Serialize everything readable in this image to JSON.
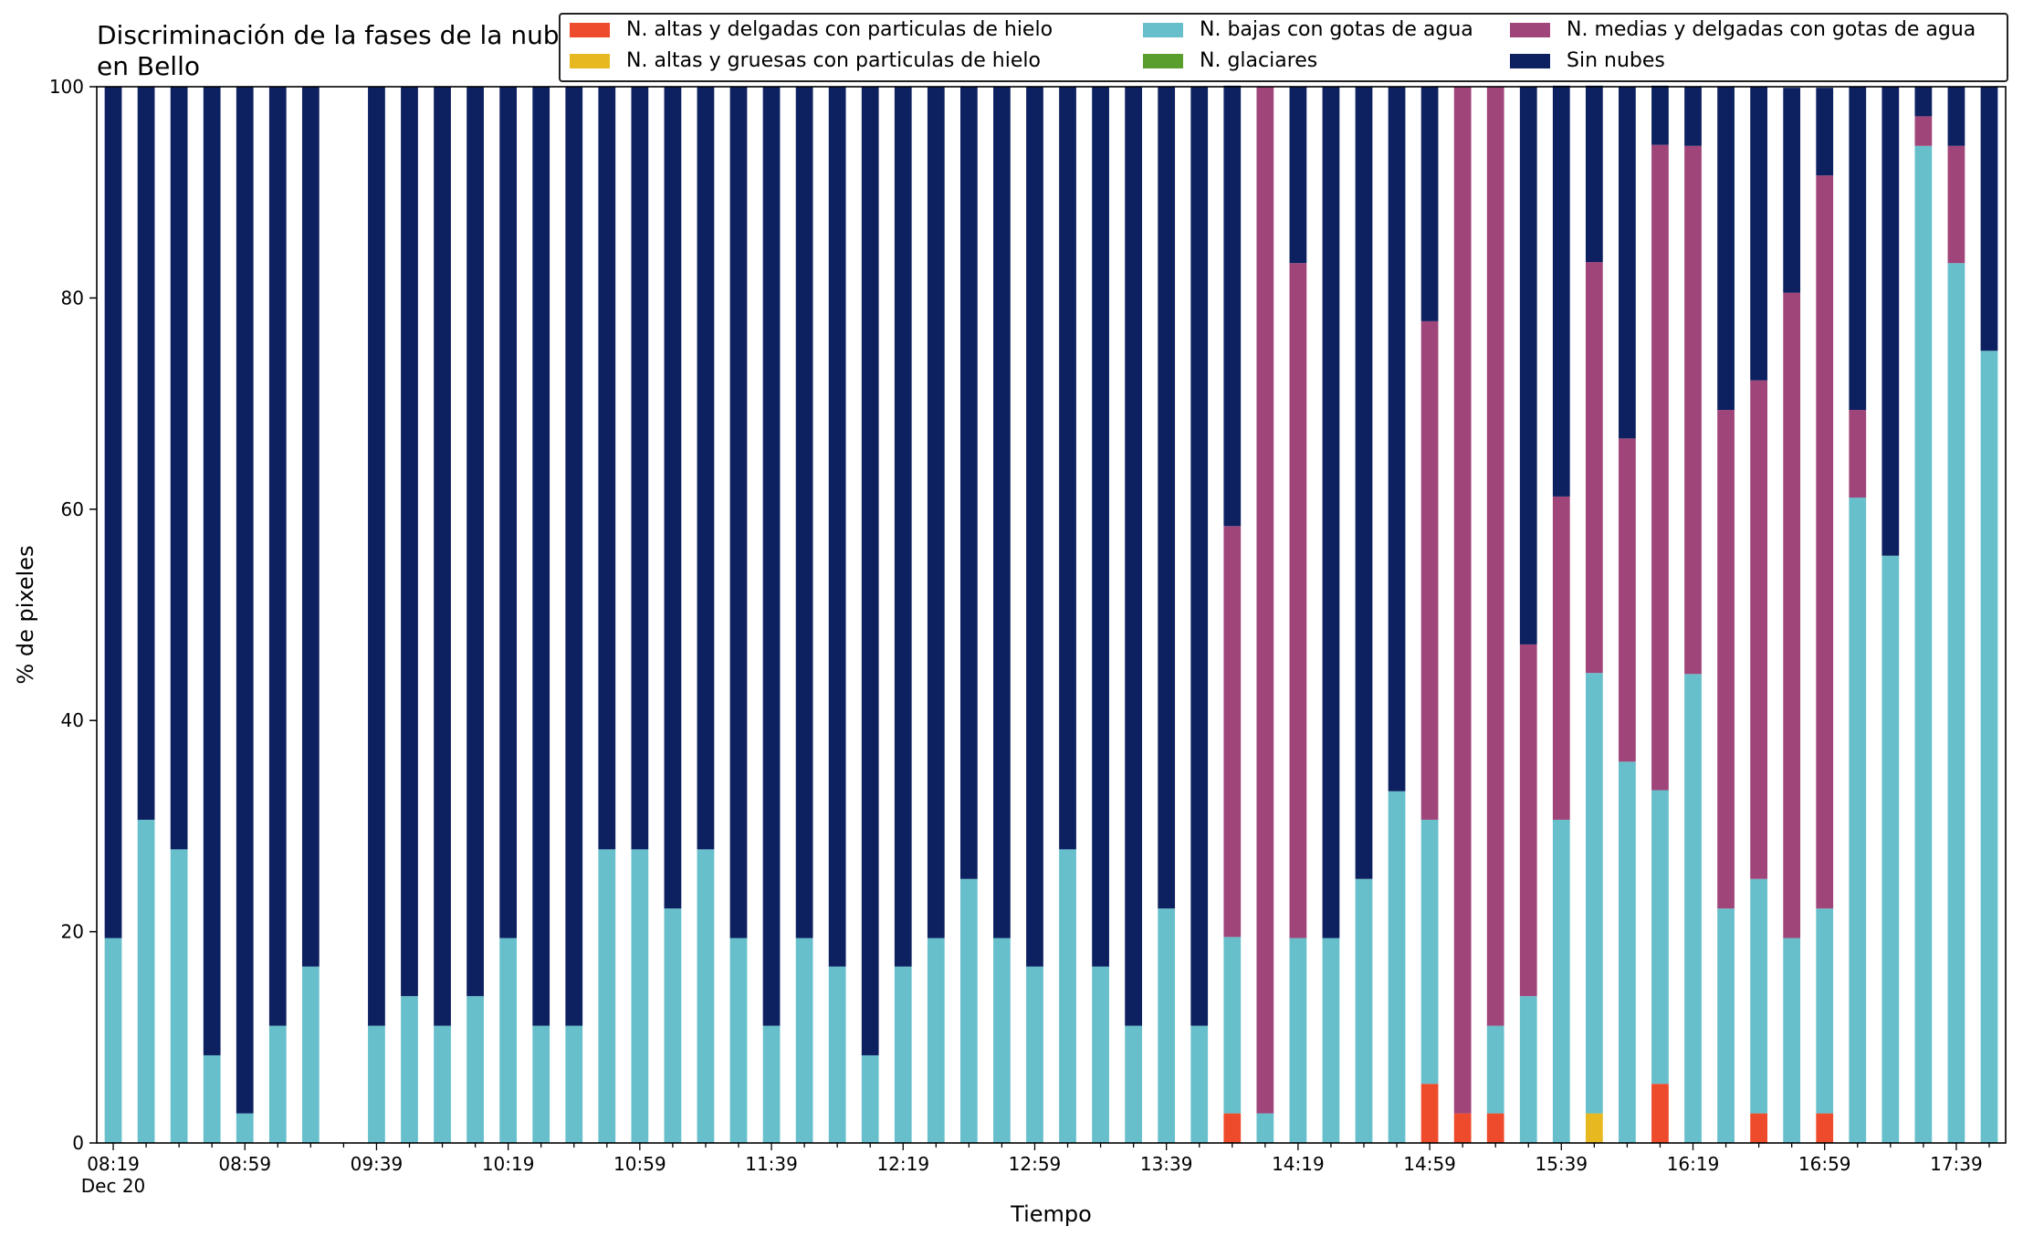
{
  "chart_data": {
    "type": "bar",
    "stacked": true,
    "title": "Discriminación de la fases de la nube en Bello",
    "xlabel": "Tiempo",
    "ylabel": "% de pixeles",
    "ylim": [
      0,
      100
    ],
    "yticks": [
      "0",
      "20",
      "40",
      "60",
      "80",
      "100"
    ],
    "xtick_labels": [
      "08:19",
      "08:59",
      "09:39",
      "10:19",
      "10:59",
      "11:39",
      "12:19",
      "12:59",
      "13:39",
      "14:19",
      "14:59",
      "15:39",
      "16:19",
      "16:59",
      "17:39"
    ],
    "xtick_sublabel": "Dec 20",
    "legend_position": "top-right",
    "categories": [
      "08:19",
      "08:29",
      "08:39",
      "08:49",
      "08:59",
      "09:09",
      "09:19",
      "09:29",
      "09:39",
      "09:49",
      "09:59",
      "10:09",
      "10:19",
      "10:29",
      "10:39",
      "10:49",
      "10:59",
      "11:09",
      "11:19",
      "11:29",
      "11:39",
      "11:49",
      "11:59",
      "12:09",
      "12:19",
      "12:29",
      "12:39",
      "12:49",
      "12:59",
      "13:09",
      "13:19",
      "13:29",
      "13:39",
      "13:49",
      "13:59",
      "14:09",
      "14:19",
      "14:29",
      "14:39",
      "14:49",
      "14:59",
      "15:09",
      "15:19",
      "15:29",
      "15:39",
      "15:49",
      "15:59",
      "16:09",
      "16:19",
      "16:29",
      "16:39",
      "16:49",
      "16:59",
      "17:09",
      "17:19",
      "17:29",
      "17:39",
      "17:49"
    ],
    "series": [
      {
        "name": "N. altas y delgadas con particulas de hielo",
        "color": "#ee4a2c",
        "values": [
          0,
          0,
          0,
          0,
          0,
          0,
          0,
          0,
          0,
          0,
          0,
          0,
          0,
          0,
          0,
          0,
          0,
          0,
          0,
          0,
          0,
          0,
          0,
          0,
          0,
          0,
          0,
          0,
          0,
          0,
          0,
          0,
          0,
          0,
          2.8,
          0,
          0,
          0,
          0,
          0,
          5.6,
          2.8,
          2.8,
          0,
          0,
          0,
          0,
          5.6,
          0,
          0,
          2.8,
          0,
          2.8,
          0,
          0,
          0,
          0,
          0
        ]
      },
      {
        "name": "N. altas y gruesas con particulas de hielo",
        "color": "#e8b820",
        "values": [
          0,
          0,
          0,
          0,
          0,
          0,
          0,
          0,
          0,
          0,
          0,
          0,
          0,
          0,
          0,
          0,
          0,
          0,
          0,
          0,
          0,
          0,
          0,
          0,
          0,
          0,
          0,
          0,
          0,
          0,
          0,
          0,
          0,
          0,
          0,
          0,
          0,
          0,
          0,
          0,
          0,
          0,
          0,
          0,
          0,
          2.8,
          0,
          0,
          0,
          0,
          0,
          0,
          0,
          0,
          0,
          0,
          0,
          0
        ]
      },
      {
        "name": "N. bajas con gotas de agua",
        "color": "#66bfcb",
        "values": [
          19.4,
          30.6,
          27.8,
          8.3,
          2.8,
          11.1,
          16.7,
          0,
          11.1,
          13.9,
          11.1,
          13.9,
          19.4,
          11.1,
          11.1,
          27.8,
          27.8,
          22.2,
          27.8,
          19.4,
          11.1,
          19.4,
          16.7,
          8.3,
          16.7,
          19.4,
          25,
          19.4,
          16.7,
          27.8,
          16.7,
          11.1,
          22.2,
          11.1,
          16.7,
          2.8,
          19.4,
          19.4,
          25,
          33.3,
          25,
          0,
          8.3,
          13.9,
          30.6,
          41.7,
          36.1,
          27.8,
          44.4,
          22.2,
          22.2,
          19.4,
          19.4,
          61.1,
          55.6,
          94.4,
          83.3,
          75
        ]
      },
      {
        "name": "N. glaciares",
        "color": "#5a9e2e",
        "values": [
          0,
          0,
          0,
          0,
          0,
          0,
          0,
          0,
          0,
          0,
          0,
          0,
          0,
          0,
          0,
          0,
          0,
          0,
          0,
          0,
          0,
          0,
          0,
          0,
          0,
          0,
          0,
          0,
          0,
          0,
          0,
          0,
          0,
          0,
          0,
          0,
          0,
          0,
          0,
          0,
          0,
          0,
          0,
          0,
          0,
          0,
          0,
          0,
          0,
          0,
          0,
          0,
          0,
          0,
          0,
          0,
          0,
          0
        ]
      },
      {
        "name": "N. medias y delgadas con gotas de agua",
        "color": "#a0457a",
        "values": [
          0,
          0,
          0,
          0,
          0,
          0,
          0,
          0,
          0,
          0,
          0,
          0,
          0,
          0,
          0,
          0,
          0,
          0,
          0,
          0,
          0,
          0,
          0,
          0,
          0,
          0,
          0,
          0,
          0,
          0,
          0,
          0,
          0,
          0,
          38.9,
          97.2,
          63.9,
          0,
          0,
          0,
          47.2,
          97.2,
          88.9,
          33.3,
          30.6,
          38.9,
          30.6,
          61.1,
          50,
          47.2,
          47.2,
          61.1,
          69.4,
          8.3,
          0,
          2.8,
          11.1,
          0
        ]
      },
      {
        "name": "Sin nubes",
        "color": "#0d2060",
        "values": [
          80.6,
          69.4,
          72.2,
          91.7,
          97.2,
          88.9,
          83.3,
          0,
          88.9,
          86.1,
          88.9,
          86.1,
          80.6,
          88.9,
          88.9,
          72.2,
          72.2,
          77.8,
          72.2,
          80.6,
          88.9,
          80.6,
          83.3,
          91.7,
          83.3,
          80.6,
          75,
          80.6,
          83.3,
          72.2,
          83.3,
          88.9,
          77.8,
          88.9,
          41.7,
          0,
          16.7,
          80.6,
          75,
          66.7,
          22.2,
          0,
          0,
          52.8,
          38.9,
          16.7,
          33.3,
          5.6,
          5.6,
          30.6,
          27.8,
          19.4,
          8.3,
          30.6,
          44.4,
          2.8,
          5.6,
          25
        ]
      }
    ]
  }
}
